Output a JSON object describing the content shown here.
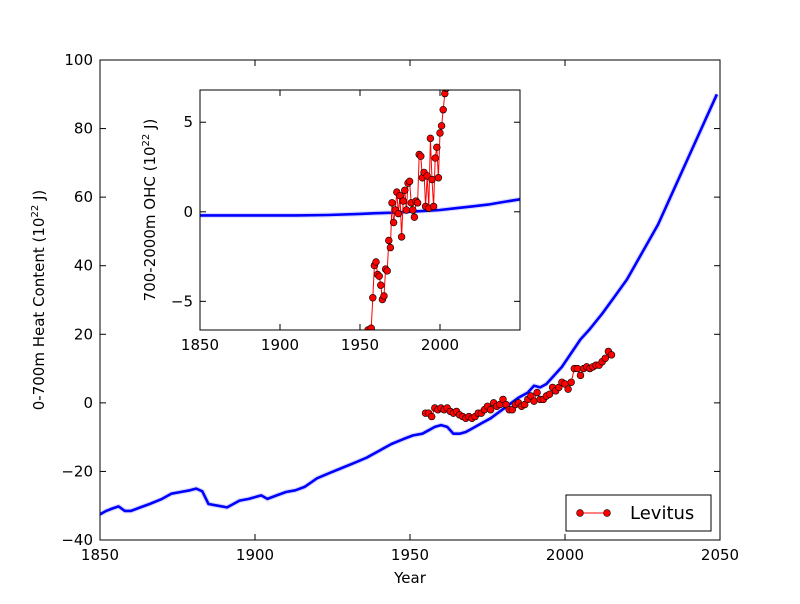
{
  "chart_data": [
    {
      "type": "line",
      "panel": "main",
      "xlabel": "Year",
      "ylabel_main": "0-700m Heat Content (10",
      "ylabel_sup": "22",
      "ylabel_tail": " J)",
      "xlim": [
        1850,
        2050
      ],
      "ylim": [
        -40,
        100
      ],
      "xticks": [
        1850,
        1900,
        1950,
        2000,
        2050
      ],
      "yticks": [
        -40,
        -20,
        0,
        20,
        40,
        60,
        80,
        100
      ],
      "xtick_labels": [
        "1850",
        "1900",
        "1950",
        "2000",
        "2050"
      ],
      "ytick_labels": [
        "−40",
        "−20",
        "0",
        "20",
        "40",
        "60",
        "80",
        "100"
      ],
      "legend": {
        "position": "lower-right",
        "entries": [
          "Levitus"
        ]
      },
      "series": [
        {
          "style": "line",
          "color": "#0000ff",
          "x": [
            1850,
            1852,
            1854,
            1856,
            1858,
            1860,
            1863,
            1866,
            1870,
            1873,
            1876,
            1879,
            1881,
            1883,
            1885,
            1888,
            1891,
            1893,
            1895,
            1898,
            1900,
            1902,
            1904,
            1907,
            1910,
            1913,
            1916,
            1920,
            1924,
            1928,
            1932,
            1936,
            1940,
            1944,
            1948,
            1951,
            1954,
            1956,
            1958,
            1960,
            1962,
            1964,
            1966,
            1968,
            1970,
            1973,
            1976,
            1979,
            1982,
            1985,
            1988,
            1990,
            1992,
            1994,
            1996,
            1999,
            2002,
            2005,
            2008,
            2012,
            2016,
            2020,
            2025,
            2030,
            2035,
            2040,
            2045,
            2049
          ],
          "y": [
            -32.5,
            -31.5,
            -30.8,
            -30.2,
            -31.5,
            -31.5,
            -30.5,
            -29.5,
            -28,
            -26.5,
            -26,
            -25.5,
            -25,
            -25.8,
            -29.5,
            -30,
            -30.5,
            -29.5,
            -28.5,
            -28,
            -27.5,
            -27,
            -28,
            -27,
            -26,
            -25.5,
            -24.5,
            -22,
            -20.5,
            -19,
            -17.5,
            -16,
            -14,
            -12,
            -10.5,
            -9.5,
            -9,
            -8,
            -7,
            -6.5,
            -7,
            -9,
            -9,
            -8.5,
            -7.5,
            -6,
            -4.5,
            -2.5,
            -0.5,
            1.5,
            3,
            5,
            4.5,
            5.5,
            7.5,
            10.5,
            14.5,
            18.5,
            21.5,
            26,
            31,
            36,
            44,
            52,
            62,
            72,
            82,
            90
          ]
        },
        {
          "name": "Levitus",
          "style": "line-marker",
          "color": "#ff0000",
          "x": [
            1955,
            1956,
            1957,
            1958,
            1959,
            1960,
            1961,
            1962,
            1963,
            1964,
            1965,
            1966,
            1967,
            1968,
            1969,
            1970,
            1971,
            1972,
            1973,
            1974,
            1975,
            1976,
            1977,
            1978,
            1979,
            1980,
            1981,
            1982,
            1983,
            1984,
            1985,
            1986,
            1987,
            1988,
            1989,
            1990,
            1991,
            1992,
            1993,
            1994,
            1995,
            1996,
            1997,
            1998,
            1999,
            2000,
            2001,
            2002,
            2003,
            2004,
            2005,
            2006,
            2007,
            2008,
            2009,
            2010,
            2011,
            2012,
            2013,
            2014,
            2015
          ],
          "y": [
            -3,
            -3,
            -4,
            -1.5,
            -2,
            -1.5,
            -2,
            -1.5,
            -2.5,
            -3,
            -2.5,
            -3.5,
            -4,
            -4.5,
            -4,
            -4.5,
            -4,
            -3,
            -3,
            -2,
            -1,
            -2,
            0,
            -1,
            -0.5,
            1,
            -0.5,
            -2,
            -2,
            -0.5,
            0,
            -1,
            -0.5,
            1,
            2,
            0.5,
            3,
            1,
            1,
            2,
            2.5,
            4.5,
            3.5,
            4.5,
            6,
            5.5,
            4,
            6,
            10,
            10,
            8,
            10,
            10.5,
            10,
            10.5,
            11,
            11,
            12,
            13,
            15,
            14
          ]
        }
      ]
    },
    {
      "type": "line",
      "panel": "inset",
      "ylabel_main": "700-2000m OHC (10",
      "ylabel_sup": "22",
      "ylabel_tail": " J)",
      "xlim": [
        1850,
        2050
      ],
      "ylim": [
        -6.6,
        6.8
      ],
      "xticks": [
        1850,
        1900,
        1950,
        2000
      ],
      "yticks": [
        -5,
        0,
        5
      ],
      "xtick_labels": [
        "1850",
        "1900",
        "1950",
        "2000"
      ],
      "ytick_labels": [
        "−5",
        "0",
        "5"
      ],
      "series": [
        {
          "style": "line",
          "color": "#0000ff",
          "x": [
            1850,
            1870,
            1890,
            1910,
            1930,
            1950,
            1960,
            1970,
            1980,
            1990,
            2000,
            2010,
            2020,
            2030,
            2040,
            2050
          ],
          "y": [
            -0.2,
            -0.2,
            -0.2,
            -0.2,
            -0.18,
            -0.12,
            -0.08,
            -0.05,
            0,
            0.05,
            0.1,
            0.2,
            0.3,
            0.4,
            0.55,
            0.7
          ]
        },
        {
          "style": "line-marker",
          "color": "#ff0000",
          "x": [
            1955,
            1957,
            1958,
            1959,
            1960,
            1961,
            1962,
            1963,
            1964,
            1965,
            1966,
            1967,
            1968,
            1969,
            1970,
            1971,
            1972,
            1973,
            1974,
            1975,
            1976,
            1977,
            1978,
            1979,
            1980,
            1981,
            1982,
            1983,
            1984,
            1985,
            1986,
            1987,
            1988,
            1989,
            1990,
            1991,
            1992,
            1993,
            1994,
            1995,
            1996,
            1997,
            1998,
            1999,
            2000,
            2001,
            2002,
            2003,
            2004,
            2005,
            2006,
            2007,
            2008,
            2009,
            2010,
            2011,
            2012,
            2013
          ],
          "y": [
            -6.6,
            -6.5,
            -4.8,
            -3,
            -2.8,
            -3.5,
            -3.6,
            -4.1,
            -4.9,
            -4.7,
            -3.2,
            -3.3,
            -1.6,
            -2,
            0.5,
            -0.6,
            0.1,
            1.1,
            -0.1,
            0.9,
            -1.4,
            0.6,
            1.2,
            0.1,
            1.6,
            1.7,
            0.5,
            0.1,
            -0.3,
            0.6,
            0.5,
            3.2,
            3.1,
            1.9,
            2.2,
            0.3,
            2.0,
            0.2,
            4.1,
            1.8,
            0.3,
            3.0,
            3.6,
            1.9,
            4.4,
            4.8,
            5.7,
            6.6,
            6.9,
            7.0,
            7.0,
            7.0,
            7.0,
            7.0,
            7.0,
            7.0,
            7.0,
            7.0
          ]
        }
      ]
    }
  ]
}
